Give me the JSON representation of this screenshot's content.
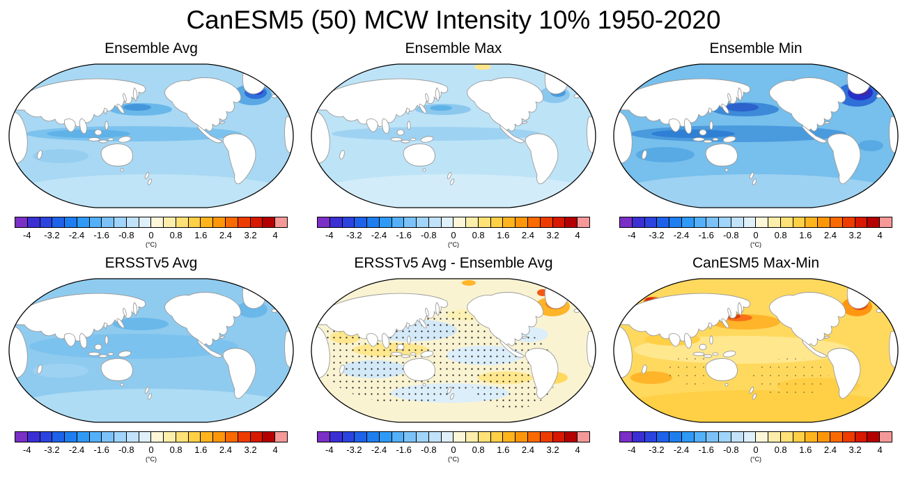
{
  "figure": {
    "title": "CanESM5 (50) MCW Intensity 10% 1950-2020"
  },
  "panels": [
    {
      "id": "ensemble-avg",
      "title": "Ensemble Avg"
    },
    {
      "id": "ensemble-max",
      "title": "Ensemble Max"
    },
    {
      "id": "ensemble-min",
      "title": "Ensemble Min"
    },
    {
      "id": "ersstv5-avg",
      "title": "ERSSTv5 Avg"
    },
    {
      "id": "ersstv5-diff",
      "title": "ERSSTv5 Avg - Ensemble Avg"
    },
    {
      "id": "canesm5-maxmin",
      "title": "CanESM5 Max-Min"
    }
  ],
  "colorbar": {
    "ticks": [
      "-4",
      "-3.2",
      "-2.4",
      "-1.6",
      "-0.8",
      "0",
      "0.8",
      "1.6",
      "2.4",
      "3.2",
      "4"
    ],
    "unit": "(°C)",
    "colors": [
      "#7a2fc6",
      "#3b2fd4",
      "#2b44e0",
      "#1e62ea",
      "#1e7ef0",
      "#2e9af6",
      "#54b0f8",
      "#7cc2f8",
      "#a0d4fa",
      "#c2e2fa",
      "#e0f0fa",
      "#fdf6d8",
      "#fdeeac",
      "#ffe178",
      "#ffcf46",
      "#ffb41e",
      "#ff960a",
      "#f96a00",
      "#ee3c00",
      "#d81800",
      "#b40000",
      "#f49898"
    ]
  },
  "chart_data": [
    {
      "type": "heatmap",
      "title": "Ensemble Avg",
      "projection": "Robinson global, Pacific-centered",
      "units": "°C",
      "levels": [
        -4,
        -3.2,
        -2.4,
        -1.6,
        -0.8,
        0,
        0.8,
        1.6,
        2.4,
        3.2,
        4
      ],
      "legend_position": "below",
      "summary": "Ensemble-average marine cold wave intensity: most of the global ocean -0.8 to -1.6 °C (light blue); stronger cooling -1.6 to -2.4 °C along the equatorial Pacific and Kuroshio extension; strongest values -3.2 to -4 °C in the subpolar North Atlantic south of Greenland."
    },
    {
      "type": "heatmap",
      "title": "Ensemble Max",
      "projection": "Robinson global, Pacific-centered",
      "units": "°C",
      "levels": [
        -4,
        -3.2,
        -2.4,
        -1.6,
        -0.8,
        0,
        0.8,
        1.6,
        2.4,
        3.2,
        4
      ],
      "legend_position": "below",
      "summary": "Weakest-cooling ensemble member: ocean mostly -0.8 to -1.2 °C (very light blue); moderate cooling -1.6 to -2.4 °C in the northwest Pacific and subpolar North Atlantic; small near-zero/yellow spot at the northern map edge."
    },
    {
      "type": "heatmap",
      "title": "Ensemble Min",
      "projection": "Robinson global, Pacific-centered",
      "units": "°C",
      "levels": [
        -4,
        -3.2,
        -2.4,
        -1.6,
        -0.8,
        0,
        0.8,
        1.6,
        2.4,
        3.2,
        4
      ],
      "legend_position": "below",
      "summary": "Strongest-cooling ensemble member: ocean mostly -1.6 to -2.4 °C (medium blue); -2.4 to -3.2 °C along the equatorial Pacific and Kuroshio; minima below -4 °C (navy/purple) in the subpolar North Atlantic south of Greenland."
    },
    {
      "type": "heatmap",
      "title": "ERSSTv5 Avg",
      "projection": "Robinson global, Pacific-centered",
      "units": "°C",
      "levels": [
        -4,
        -3.2,
        -2.4,
        -1.6,
        -0.8,
        0,
        0.8,
        1.6,
        2.4,
        3.2,
        4
      ],
      "legend_position": "below",
      "summary": "Observed ERSSTv5 average MCW intensity: smooth field, mostly -0.8 to -1.6 °C over all basins with slightly stronger cooling in the central/western Pacific; no extreme North Atlantic minimum."
    },
    {
      "type": "heatmap",
      "title": "ERSSTv5 Avg - Ensemble Avg",
      "projection": "Robinson global, Pacific-centered",
      "units": "°C",
      "levels": [
        -4,
        -3.2,
        -2.4,
        -1.6,
        -0.8,
        0,
        0.8,
        1.6,
        2.4,
        3.2,
        4
      ],
      "legend_position": "below",
      "summary": "Observation-minus-model difference: mostly within ±0.8 °C (mottled pale yellow and pale blue); dense black stippling over most of the Pacific, Indian and South Atlantic oceans; strong positive differences +1.6 to +3.2 °C (orange/red, unstippled) in the subpolar North Atlantic near Greenland."
    },
    {
      "type": "heatmap",
      "title": "CanESM5 Max-Min",
      "projection": "Robinson global, Pacific-centered",
      "units": "°C",
      "levels": [
        -4,
        -3.2,
        -2.4,
        -1.6,
        -0.8,
        0,
        0.8,
        1.6,
        2.4,
        3.2,
        4
      ],
      "legend_position": "below",
      "summary": "Ensemble spread (max minus min): mostly +0.8 to +1.6 °C (yellow); +1.6 to +2.4 °C (orange) in mid-latitude and Southern Ocean bands; peaks of +3.2 to +4 °C (red) in the subpolar North Atlantic and Kuroshio region; sparse stippling in parts of the South Pacific."
    }
  ]
}
